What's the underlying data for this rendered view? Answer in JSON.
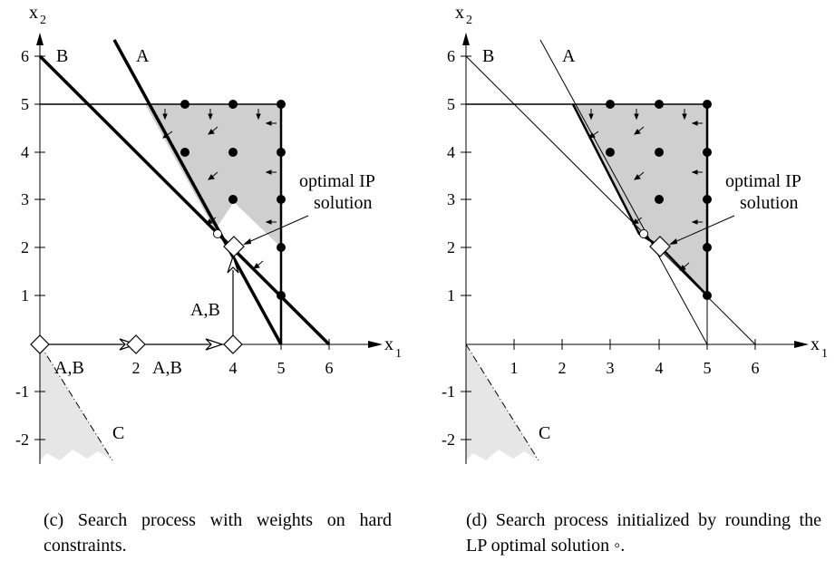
{
  "panels": [
    {
      "id": "c",
      "caption": "(c) Search process with weights on hard constraints.",
      "axis": {
        "x_label": "x",
        "x_sub": "1",
        "y_label": "x",
        "y_sub": "2"
      },
      "x_ticks": [
        "2",
        "4",
        "5",
        "6"
      ],
      "y_ticks": [
        "6",
        "5",
        "4",
        "3",
        "2",
        "1",
        "-1",
        "-2"
      ],
      "line_labels": {
        "A": "A",
        "B": "B",
        "C": "C"
      },
      "step_labels": [
        "A,B",
        "A,B",
        "A,B"
      ],
      "annotation": [
        "optimal IP",
        "solution"
      ]
    },
    {
      "id": "d",
      "caption": "(d) Search process initialized by rounding the LP optimal solution ◦.",
      "axis": {
        "x_label": "x",
        "x_sub": "1",
        "y_label": "x",
        "y_sub": "2"
      },
      "x_ticks": [
        "1",
        "2",
        "3",
        "4",
        "5",
        "6"
      ],
      "y_ticks": [
        "6",
        "5",
        "4",
        "3",
        "2",
        "1",
        "-1",
        "-2"
      ],
      "line_labels": {
        "A": "A",
        "B": "B",
        "C": "C"
      },
      "annotation": [
        "optimal IP",
        "solution"
      ]
    }
  ],
  "feasible_integer_points": [
    [
      3,
      5
    ],
    [
      4,
      5
    ],
    [
      5,
      5
    ],
    [
      3,
      4
    ],
    [
      4,
      4
    ],
    [
      5,
      4
    ],
    [
      4,
      3
    ],
    [
      5,
      3
    ],
    [
      5,
      2
    ],
    [
      5,
      1
    ]
  ],
  "lp_optimum": [
    3.7,
    2.3
  ],
  "ip_optimum": [
    4,
    2
  ],
  "search_path_c": [
    [
      0,
      0
    ],
    [
      2,
      0
    ],
    [
      4,
      0
    ],
    [
      4,
      2
    ]
  ]
}
